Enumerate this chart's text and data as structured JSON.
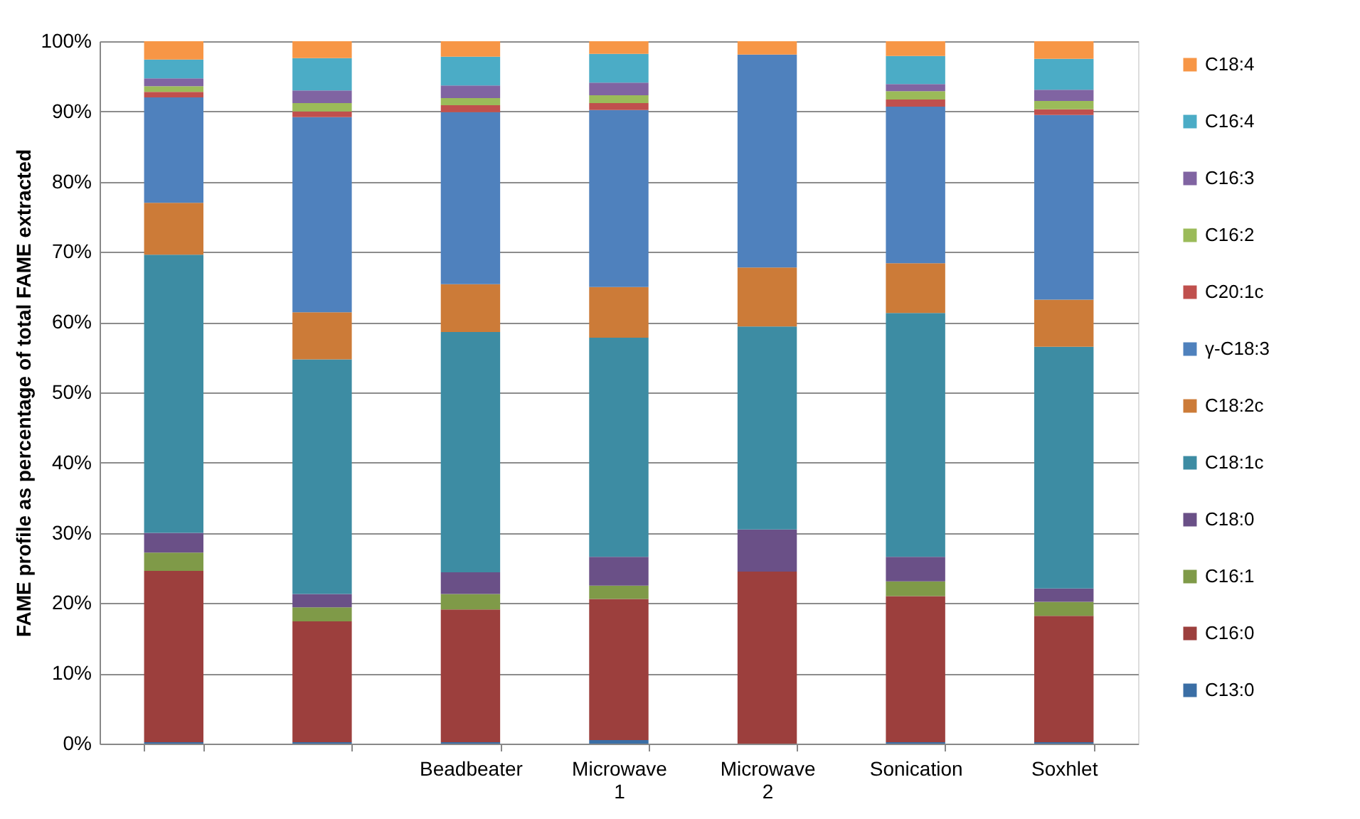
{
  "chart_data": {
    "type": "bar",
    "stacked": true,
    "ylabel": "FAME profile as percentage of total FAME extracted",
    "categories": [
      null,
      null,
      "Beadbeater",
      "Microwave 1",
      "Microwave 2",
      "Sonication",
      "Soxhlet"
    ],
    "ylim": [
      0,
      100
    ],
    "yticks": [
      {
        "value": 0,
        "label": "0%"
      },
      {
        "value": 10,
        "label": "10%"
      },
      {
        "value": 20,
        "label": "20%"
      },
      {
        "value": 30,
        "label": "30%"
      },
      {
        "value": 40,
        "label": "40%"
      },
      {
        "value": 50,
        "label": "50%"
      },
      {
        "value": 60,
        "label": "60%"
      },
      {
        "value": 70,
        "label": "70%"
      },
      {
        "value": 80,
        "label": "80%"
      },
      {
        "value": 90,
        "label": "90%"
      },
      {
        "value": 100,
        "label": "100%"
      }
    ],
    "grid": "y",
    "legend": "right",
    "series": [
      {
        "name": "C13:0",
        "color": "#3a6ea5",
        "values": [
          0.2,
          0.2,
          0.2,
          0.5,
          0,
          0.2,
          0.2
        ]
      },
      {
        "name": "C16:0",
        "color": "#9c3f3d",
        "values": [
          24.4,
          17.2,
          18.9,
          20.1,
          24.5,
          20.8,
          18.0
        ]
      },
      {
        "name": "C16:1",
        "color": "#7f9a48",
        "values": [
          2.6,
          2.0,
          2.2,
          1.9,
          0,
          2.1,
          2.0
        ]
      },
      {
        "name": "C18:0",
        "color": "#6a5087",
        "values": [
          2.8,
          1.9,
          3.1,
          4.1,
          6.0,
          3.5,
          1.9
        ]
      },
      {
        "name": "C18:1c",
        "color": "#3d8ca3",
        "values": [
          39.6,
          33.4,
          34.2,
          31.2,
          28.9,
          34.7,
          34.4
        ]
      },
      {
        "name": "C18:2c",
        "color": "#cc7b38",
        "values": [
          7.4,
          6.7,
          6.8,
          7.2,
          8.4,
          7.1,
          6.7
        ]
      },
      {
        "name": "γ-C18:3",
        "color": "#4f81bd",
        "values": [
          15.0,
          27.8,
          24.5,
          25.2,
          30.3,
          22.3,
          26.3
        ]
      },
      {
        "name": "C20:1c",
        "color": "#c0504d",
        "values": [
          0.8,
          0.8,
          1.0,
          1.0,
          0,
          1.0,
          0.8
        ]
      },
      {
        "name": "C16:2",
        "color": "#9bbb59",
        "values": [
          0.8,
          1.2,
          1.0,
          1.1,
          0,
          1.2,
          1.2
        ]
      },
      {
        "name": "C16:3",
        "color": "#8064a2",
        "values": [
          1.1,
          1.8,
          1.8,
          1.8,
          0,
          1.0,
          1.6
        ]
      },
      {
        "name": "C16:4",
        "color": "#4bacc6",
        "values": [
          2.7,
          4.6,
          4.1,
          4.1,
          0,
          4.0,
          4.4
        ]
      },
      {
        "name": "C18:4",
        "color": "#f79646",
        "values": [
          2.6,
          2.4,
          2.2,
          1.8,
          1.9,
          2.1,
          2.5
        ]
      }
    ]
  }
}
